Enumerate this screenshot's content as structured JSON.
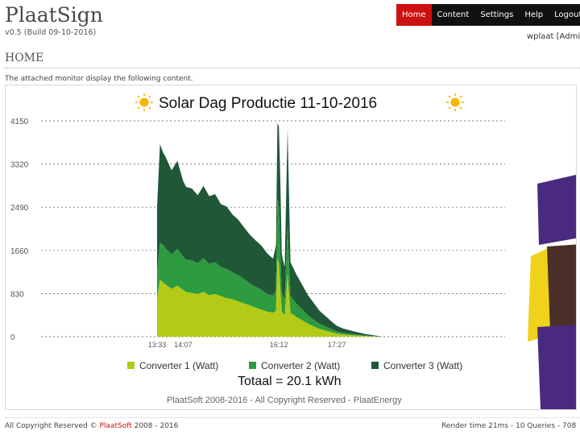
{
  "app": {
    "title": "PlaatSign",
    "version": "v0.5 (Build 09-10-2016)"
  },
  "nav": {
    "items": [
      {
        "label": "Home",
        "active": true
      },
      {
        "label": "Content",
        "active": false
      },
      {
        "label": "Settings",
        "active": false
      },
      {
        "label": "Help",
        "active": false
      },
      {
        "label": "Logout",
        "active": false
      }
    ]
  },
  "user": {
    "label": "wplaat [Admin]"
  },
  "page": {
    "title": "HOME",
    "intro": "The attached monitor display the following content."
  },
  "content": {
    "sun_icon": "sun-icon",
    "logo_colors": [
      "#4a2a80",
      "#f1d21b",
      "#4a3029"
    ]
  },
  "chart_data": {
    "type": "area",
    "stacked": true,
    "title": "Solar Dag Productie 11-10-2016",
    "total_label": "Totaal = 20.1 kWh",
    "copyright": "PlaatSoft 2008-2016 - All Copyright Reserved - PlaatEnergy",
    "ylim": [
      0,
      4150
    ],
    "y_ticks": [
      0,
      830,
      1660,
      2490,
      3320,
      4150
    ],
    "y_tick_labels": [
      "0",
      "830",
      "1660",
      "2490",
      "3320",
      "4150"
    ],
    "x_tick_labels": [
      "13:33",
      "14:07",
      "16:12",
      "17:27"
    ],
    "x_tick_positions": [
      10.0,
      10.9,
      14.2,
      16.2
    ],
    "x_range": [
      6.0,
      22.0
    ],
    "grid": true,
    "legend_position": "bottom",
    "x": [
      10.0,
      10.1,
      10.2,
      10.3,
      10.5,
      10.7,
      10.9,
      11.0,
      11.2,
      11.4,
      11.6,
      11.8,
      12.0,
      12.2,
      12.4,
      12.6,
      12.8,
      13.0,
      13.2,
      13.4,
      13.6,
      13.8,
      14.0,
      14.1,
      14.15,
      14.2,
      14.25,
      14.3,
      14.35,
      14.4,
      14.5,
      14.6,
      14.8,
      15.0,
      15.2,
      15.4,
      15.6,
      15.8,
      16.0,
      16.2,
      16.4,
      16.6,
      16.8,
      17.0,
      17.2,
      17.5,
      17.8
    ],
    "series": [
      {
        "name": "Converter 1 (Watt)",
        "color": "#b2cb17",
        "values": [
          700,
          1100,
          1050,
          1000,
          920,
          980,
          900,
          860,
          840,
          820,
          860,
          800,
          820,
          780,
          740,
          720,
          680,
          640,
          600,
          560,
          520,
          480,
          460,
          500,
          1500,
          1400,
          900,
          480,
          440,
          420,
          1200,
          460,
          380,
          320,
          250,
          200,
          150,
          120,
          90,
          60,
          45,
          35,
          25,
          20,
          12,
          5,
          0
        ]
      },
      {
        "name": "Converter 2 (Watt)",
        "color": "#2d9b3f",
        "values": [
          500,
          700,
          720,
          690,
          660,
          710,
          640,
          620,
          630,
          590,
          650,
          600,
          610,
          560,
          560,
          520,
          500,
          470,
          420,
          400,
          380,
          340,
          330,
          400,
          1150,
          1100,
          700,
          360,
          330,
          300,
          900,
          320,
          260,
          210,
          160,
          130,
          100,
          80,
          60,
          40,
          30,
          25,
          20,
          15,
          10,
          5,
          0
        ]
      },
      {
        "name": "Converter 3 (Watt)",
        "color": "#205737",
        "values": [
          1300,
          1900,
          1780,
          1760,
          1620,
          1690,
          1450,
          1400,
          1380,
          1310,
          1390,
          1300,
          1310,
          1210,
          1200,
          1110,
          1070,
          990,
          940,
          890,
          850,
          780,
          710,
          860,
          1450,
          1550,
          1400,
          760,
          680,
          620,
          1900,
          650,
          560,
          470,
          390,
          320,
          250,
          200,
          150,
          110,
          85,
          70,
          55,
          40,
          28,
          15,
          0
        ]
      }
    ]
  },
  "footer": {
    "copyright_prefix": "All Copyright Reserved ©",
    "brand": "PlaatSoft",
    "years": "2008 - 2016",
    "render": "Render time 21ms - 10 Queries - 708"
  }
}
